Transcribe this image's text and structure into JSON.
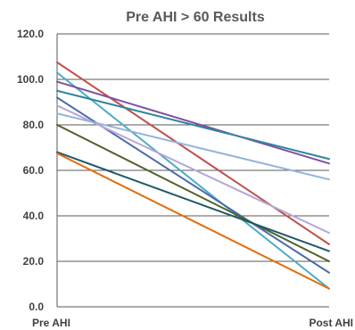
{
  "chart_data": {
    "type": "line",
    "title": "Pre AHI > 60 Results",
    "categories": [
      "Pre AHI",
      "Post AHI"
    ],
    "ylim": [
      0,
      120
    ],
    "yticks": [
      "0.0",
      "20.0",
      "40.0",
      "60.0",
      "80.0",
      "100.0",
      "120.0"
    ],
    "grid": true,
    "series": [
      {
        "values": [
          107.5,
          27.5
        ],
        "color": "#C0504D"
      },
      {
        "values": [
          103,
          8
        ],
        "color": "#4BACC6"
      },
      {
        "values": [
          99,
          63
        ],
        "color": "#7F4F9F"
      },
      {
        "values": [
          95,
          65
        ],
        "color": "#31859C"
      },
      {
        "values": [
          92,
          15
        ],
        "color": "#4F6BA8"
      },
      {
        "values": [
          88.5,
          32.5
        ],
        "color": "#B4A7D6"
      },
      {
        "values": [
          85,
          56
        ],
        "color": "#95B3D7"
      },
      {
        "values": [
          80,
          20
        ],
        "color": "#4F6228"
      },
      {
        "values": [
          68,
          24.5
        ],
        "color": "#215968"
      },
      {
        "values": [
          67.5,
          8
        ],
        "color": "#E36C09"
      }
    ]
  }
}
